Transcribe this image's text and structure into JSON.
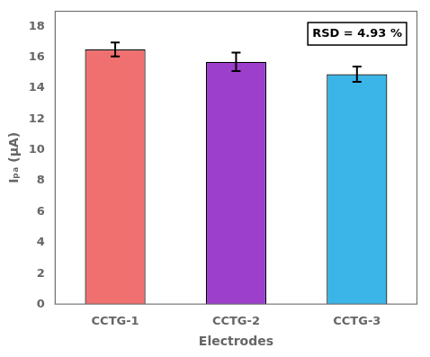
{
  "chart_data": {
    "type": "bar",
    "categories": [
      "CCTG-1",
      "CCTG-2",
      "CCTG-3"
    ],
    "values": [
      16.5,
      15.7,
      14.9
    ],
    "errors": [
      0.45,
      0.6,
      0.5
    ],
    "colors": [
      "#F07070",
      "#9B3FCC",
      "#3BB5E8"
    ],
    "xlabel": "Electrodes",
    "ylabel": "Iₚₐ (μA)",
    "ylim": [
      0,
      19
    ],
    "yticks": [
      0,
      2,
      4,
      6,
      8,
      10,
      12,
      14,
      16,
      18
    ],
    "annotation": "RSD = 4.93 %",
    "grid": false
  }
}
